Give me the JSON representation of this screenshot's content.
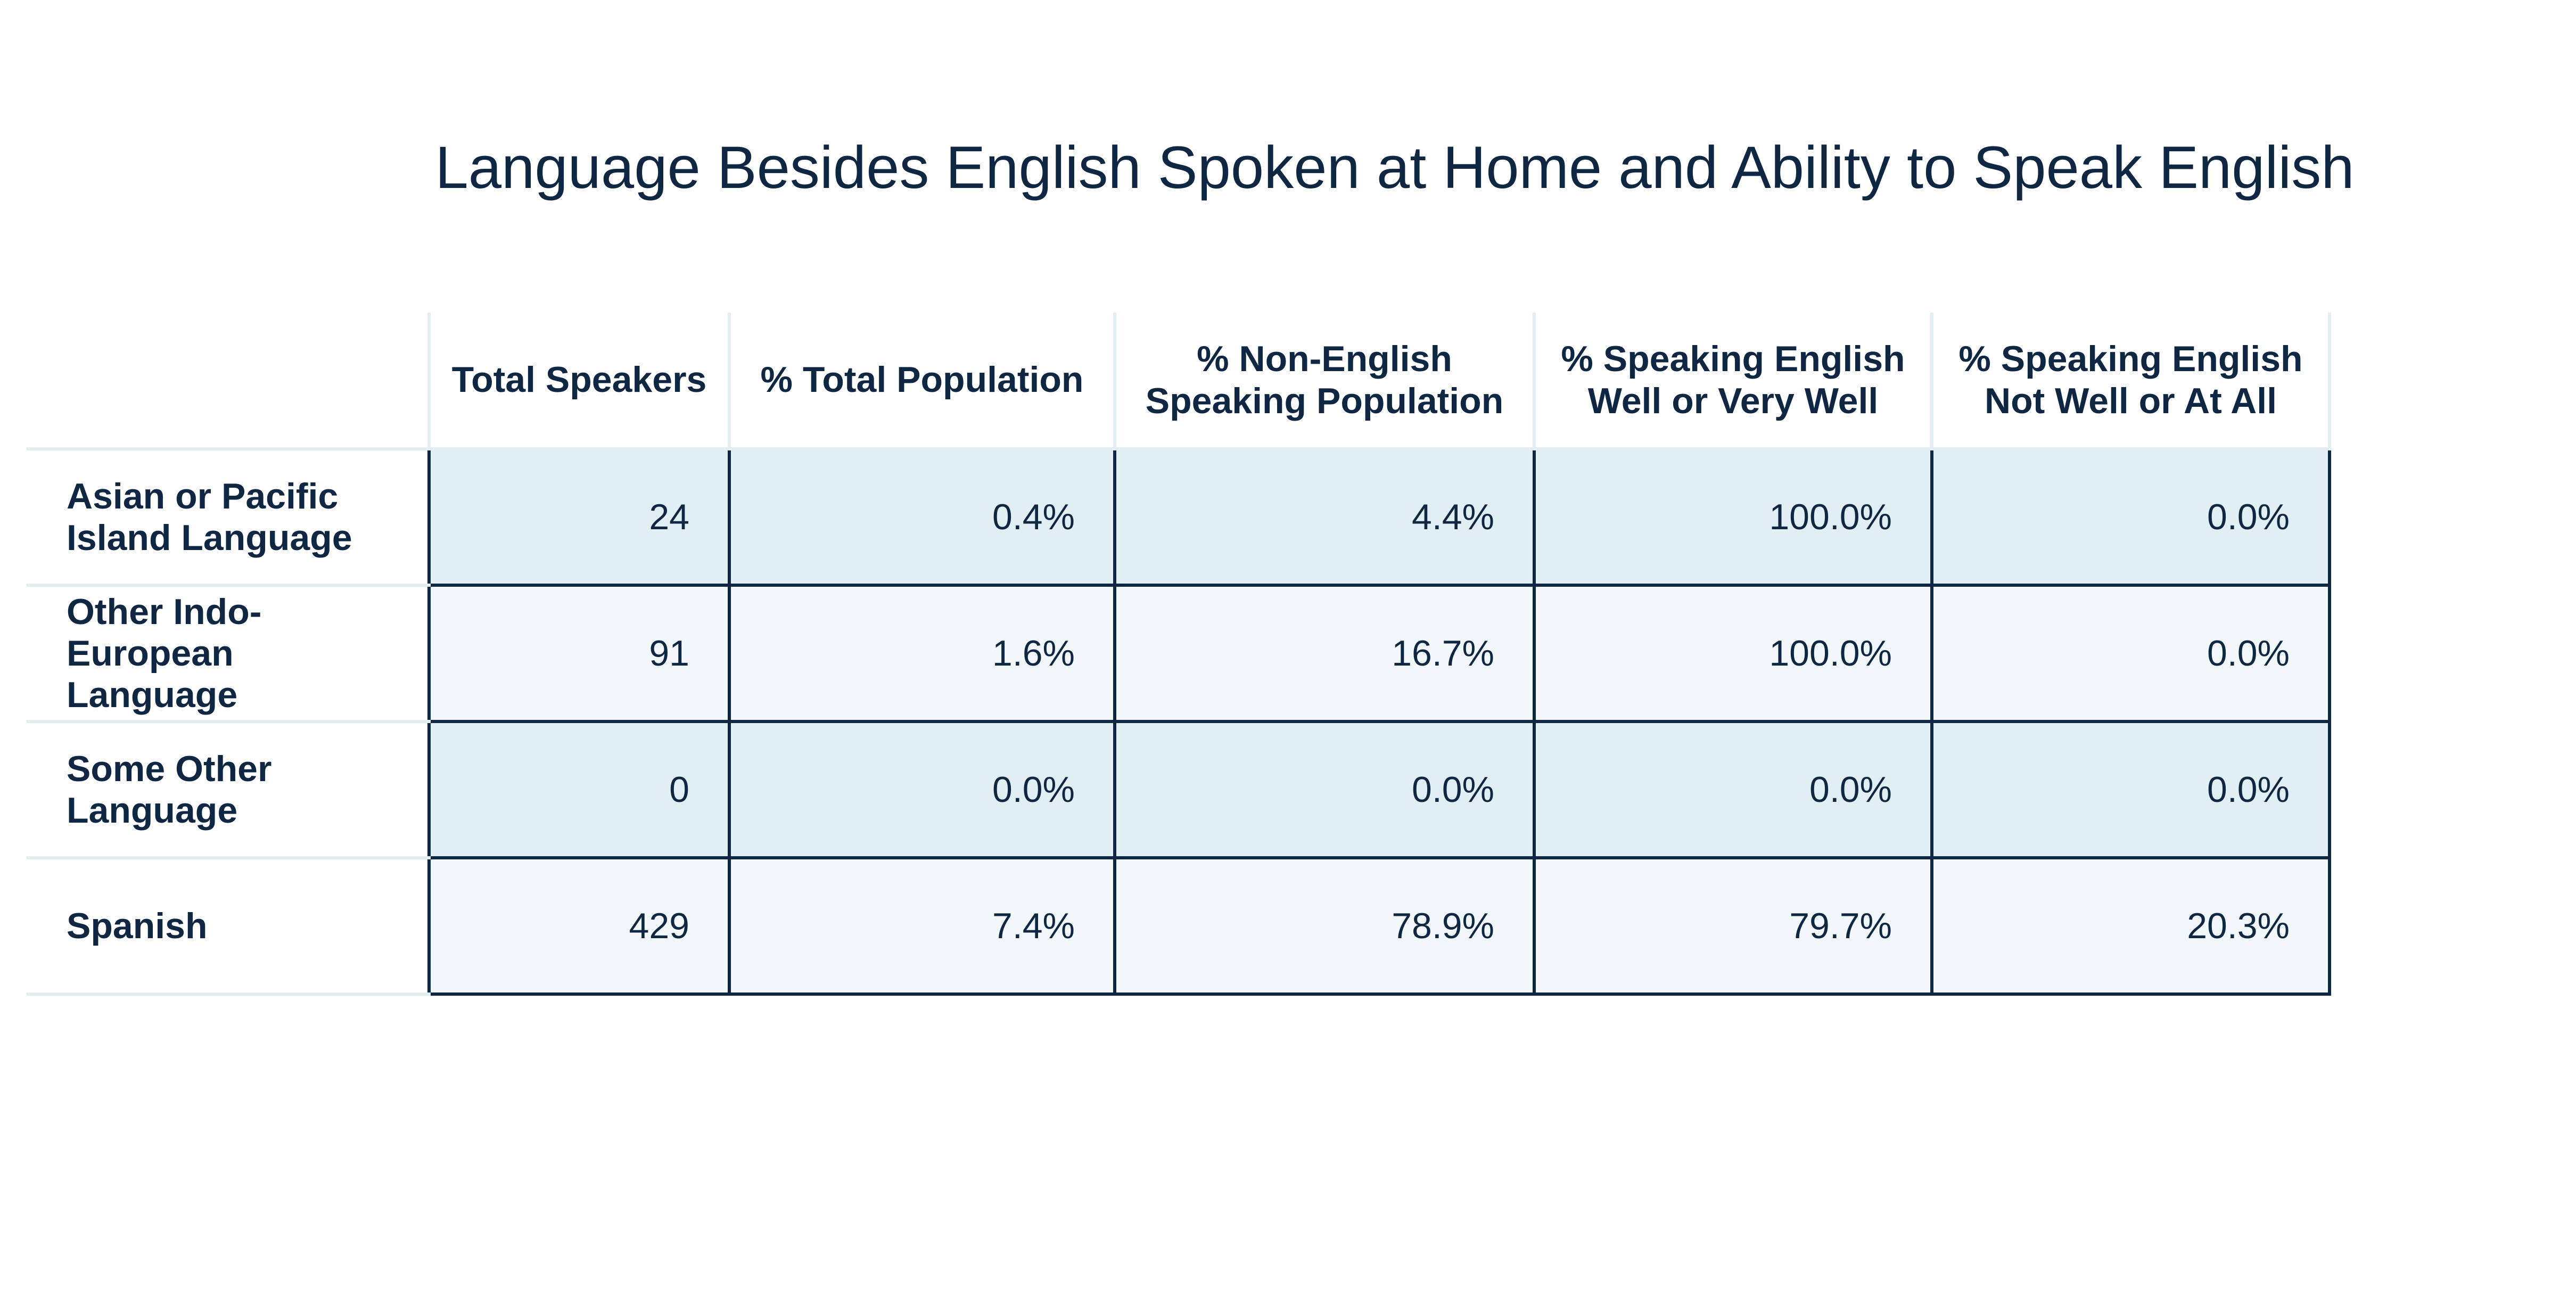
{
  "chart_data": {
    "type": "table",
    "title": "Language Besides English Spoken at Home and Ability to Speak English",
    "columns": [
      [
        "Total Speakers"
      ],
      [
        "% Total Population"
      ],
      [
        "% Non-English",
        "Speaking Population"
      ],
      [
        "% Speaking English",
        "Well or Very Well"
      ],
      [
        "% Speaking English",
        "Not Well or At All"
      ]
    ],
    "rows": [
      {
        "label": [
          "Asian or Pacific",
          "Island Language"
        ],
        "values": [
          "24",
          "0.4%",
          "4.4%",
          "100.0%",
          "0.0%"
        ]
      },
      {
        "label": [
          "Other Indo-",
          "European Language"
        ],
        "values": [
          "91",
          "1.6%",
          "16.7%",
          "100.0%",
          "0.0%"
        ]
      },
      {
        "label": [
          "Some Other",
          "Language"
        ],
        "values": [
          "0",
          "0.0%",
          "0.0%",
          "0.0%",
          "0.0%"
        ]
      },
      {
        "label": [
          "Spanish"
        ],
        "values": [
          "429",
          "7.4%",
          "78.9%",
          "79.7%",
          "20.3%"
        ]
      }
    ],
    "colors": {
      "text": "#0f2742",
      "row_dark": "#e1eef3",
      "row_light": "#f2f8f9",
      "cell_border": "#0f2742",
      "header_border": "#e2eef2"
    }
  }
}
